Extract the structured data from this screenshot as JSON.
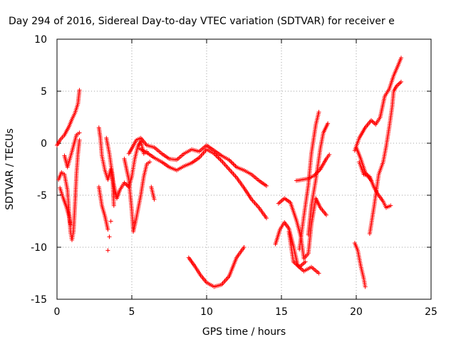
{
  "chart_data": {
    "type": "scatter",
    "title": "Day 294 of 2016, Sidereal Day-to-day VTEC variation (SDTVAR) for receiver e",
    "xlabel": "GPS time / hours",
    "ylabel": "SDTVAR / TECUs",
    "xlim": [
      0,
      25
    ],
    "ylim": [
      -15,
      10
    ],
    "xticks": [
      0,
      5,
      10,
      15,
      20,
      25
    ],
    "yticks": [
      -15,
      -10,
      -5,
      0,
      5,
      10
    ],
    "grid": true,
    "marker": "+",
    "color": "#ff0000",
    "series": [
      {
        "values": [
          [
            0,
            -0.2
          ],
          [
            0.2,
            0.3
          ],
          [
            0.5,
            0.8
          ],
          [
            0.8,
            1.6
          ],
          [
            1.0,
            2.3
          ],
          [
            1.2,
            2.9
          ],
          [
            1.4,
            3.8
          ],
          [
            1.5,
            5.1
          ],
          [
            0.1,
            -3.5
          ],
          [
            0.3,
            -2.8
          ],
          [
            0.5,
            -3.0
          ],
          [
            0.7,
            -4.5
          ],
          [
            0.8,
            -6.5
          ],
          [
            0.9,
            -8.5
          ],
          [
            1.0,
            -9.3
          ],
          [
            1.1,
            -8.5
          ],
          [
            1.2,
            -6.0
          ],
          [
            1.3,
            -3.0
          ],
          [
            1.4,
            -1.0
          ],
          [
            1.5,
            0.3
          ],
          [
            0.2,
            -4.3
          ],
          [
            0.4,
            -5.2
          ],
          [
            0.6,
            -6.0
          ],
          [
            0.8,
            -7.0
          ],
          [
            0.9,
            -7.8
          ],
          [
            0.5,
            -1.2
          ],
          [
            0.7,
            -2.3
          ],
          [
            1.0,
            -0.8
          ],
          [
            1.3,
            0.8
          ],
          [
            1.5,
            1.0
          ],
          [
            2.8,
            1.5
          ],
          [
            2.9,
            0.5
          ],
          [
            3.0,
            -1.2
          ],
          [
            3.2,
            -2.6
          ],
          [
            3.4,
            -3.5
          ],
          [
            3.6,
            -2.5
          ],
          [
            3.8,
            -4.0
          ],
          [
            4.0,
            -5.3
          ],
          [
            4.2,
            -4.5
          ],
          [
            4.5,
            -3.8
          ],
          [
            4.8,
            -4.2
          ],
          [
            5.0,
            -3.2
          ],
          [
            5.2,
            -1.5
          ],
          [
            5.4,
            -0.3
          ],
          [
            5.6,
            0.2
          ],
          [
            5.8,
            -1.0
          ],
          [
            6.0,
            -0.8
          ],
          [
            6.3,
            -4.2
          ],
          [
            6.5,
            -5.4
          ],
          [
            3.3,
            0.5
          ],
          [
            3.5,
            -1.0
          ],
          [
            3.7,
            -3.0
          ],
          [
            3.8,
            -6.0
          ],
          [
            3.6,
            -7.5
          ],
          [
            3.5,
            -9.0
          ],
          [
            3.4,
            -10.3
          ],
          [
            2.8,
            -4.2
          ],
          [
            3.0,
            -6.0
          ],
          [
            3.2,
            -7.0
          ],
          [
            3.4,
            -8.3
          ],
          [
            4.5,
            -1.5
          ],
          [
            4.8,
            -3.5
          ],
          [
            5.0,
            -6.5
          ],
          [
            5.1,
            -8.5
          ],
          [
            5.3,
            -7.2
          ],
          [
            5.6,
            -5.0
          ],
          [
            5.8,
            -3.2
          ],
          [
            6.0,
            -2.0
          ],
          [
            6.2,
            -1.8
          ],
          [
            4.8,
            -1.0
          ],
          [
            5.0,
            -0.5
          ],
          [
            5.3,
            0.3
          ],
          [
            5.6,
            0.5
          ],
          [
            6.0,
            -0.2
          ],
          [
            6.5,
            -0.4
          ],
          [
            7.0,
            -1.0
          ],
          [
            7.5,
            -1.5
          ],
          [
            8.0,
            -1.6
          ],
          [
            8.5,
            -1.0
          ],
          [
            9.0,
            -0.6
          ],
          [
            9.5,
            -0.8
          ],
          [
            10.0,
            -0.2
          ],
          [
            10.5,
            -0.7
          ],
          [
            11.0,
            -1.2
          ],
          [
            11.5,
            -1.6
          ],
          [
            12.0,
            -2.3
          ],
          [
            12.5,
            -2.6
          ],
          [
            13.0,
            -3.0
          ],
          [
            13.5,
            -3.6
          ],
          [
            14.0,
            -4.1
          ],
          [
            5.5,
            -0.5
          ],
          [
            6.0,
            -0.9
          ],
          [
            6.5,
            -1.4
          ],
          [
            7.0,
            -1.8
          ],
          [
            7.5,
            -2.3
          ],
          [
            8.0,
            -2.6
          ],
          [
            8.5,
            -2.2
          ],
          [
            9.0,
            -1.9
          ],
          [
            9.5,
            -1.4
          ],
          [
            10.0,
            -0.6
          ],
          [
            10.5,
            -1.0
          ],
          [
            11.0,
            -1.7
          ],
          [
            11.5,
            -2.5
          ],
          [
            12.0,
            -3.3
          ],
          [
            12.5,
            -4.3
          ],
          [
            13.0,
            -5.4
          ],
          [
            13.5,
            -6.2
          ],
          [
            14.0,
            -7.2
          ],
          [
            8.8,
            -11.0
          ],
          [
            9.2,
            -11.8
          ],
          [
            9.6,
            -12.7
          ],
          [
            10.0,
            -13.4
          ],
          [
            10.5,
            -13.8
          ],
          [
            11.0,
            -13.6
          ],
          [
            11.5,
            -12.8
          ],
          [
            12.0,
            -11.0
          ],
          [
            12.5,
            -10.0
          ],
          [
            14.6,
            -9.7
          ],
          [
            14.9,
            -8.3
          ],
          [
            15.2,
            -7.6
          ],
          [
            15.5,
            -8.2
          ],
          [
            15.8,
            -9.9
          ],
          [
            16.1,
            -11.8
          ],
          [
            16.5,
            -12.3
          ],
          [
            17.0,
            -11.9
          ],
          [
            17.5,
            -12.5
          ],
          [
            14.8,
            -5.8
          ],
          [
            15.2,
            -5.3
          ],
          [
            15.6,
            -5.7
          ],
          [
            16.0,
            -7.4
          ],
          [
            16.3,
            -9.0
          ],
          [
            16.5,
            -11.1
          ],
          [
            16.8,
            -10.6
          ],
          [
            17.0,
            -7.8
          ],
          [
            17.3,
            -5.3
          ],
          [
            17.6,
            -6.2
          ],
          [
            18.0,
            -6.9
          ],
          [
            15.5,
            -8.5
          ],
          [
            15.8,
            -11.4
          ],
          [
            16.2,
            -11.9
          ],
          [
            16.6,
            -11.4
          ],
          [
            16.0,
            -3.6
          ],
          [
            16.4,
            -3.5
          ],
          [
            16.8,
            -3.4
          ],
          [
            17.2,
            -3.1
          ],
          [
            17.6,
            -2.5
          ],
          [
            18.0,
            -1.5
          ],
          [
            18.2,
            -1.1
          ],
          [
            16.2,
            -10.2
          ],
          [
            16.5,
            -7.0
          ],
          [
            16.8,
            -4.0
          ],
          [
            17.0,
            -1.0
          ],
          [
            17.3,
            1.8
          ],
          [
            17.5,
            3.0
          ],
          [
            16.8,
            -8.8
          ],
          [
            17.0,
            -6.0
          ],
          [
            17.3,
            -3.5
          ],
          [
            17.6,
            -0.5
          ],
          [
            17.8,
            1.0
          ],
          [
            18.1,
            1.9
          ],
          [
            19.9,
            -9.6
          ],
          [
            20.1,
            -10.3
          ],
          [
            20.3,
            -11.8
          ],
          [
            20.5,
            -13.0
          ],
          [
            20.6,
            -13.8
          ],
          [
            19.9,
            -0.7
          ],
          [
            20.2,
            0.5
          ],
          [
            20.6,
            1.5
          ],
          [
            21.0,
            2.2
          ],
          [
            21.3,
            1.8
          ],
          [
            21.6,
            2.5
          ],
          [
            21.9,
            4.5
          ],
          [
            22.2,
            5.2
          ],
          [
            22.5,
            6.5
          ],
          [
            22.8,
            7.5
          ],
          [
            23.0,
            8.2
          ],
          [
            20.2,
            -1.8
          ],
          [
            20.5,
            -3.0
          ],
          [
            20.9,
            -3.2
          ],
          [
            21.2,
            -4.3
          ],
          [
            21.5,
            -5.0
          ],
          [
            21.8,
            -5.6
          ],
          [
            22.0,
            -6.2
          ],
          [
            22.3,
            -6.0
          ],
          [
            20.9,
            -8.7
          ],
          [
            21.2,
            -6.0
          ],
          [
            21.5,
            -3.0
          ],
          [
            21.8,
            -1.8
          ],
          [
            22.0,
            -0.3
          ],
          [
            22.2,
            1.5
          ],
          [
            22.4,
            3.5
          ],
          [
            22.5,
            5.0
          ],
          [
            22.7,
            5.5
          ],
          [
            23.0,
            5.9
          ],
          [
            20.0,
            -0.4
          ],
          [
            20.3,
            -1.5
          ],
          [
            20.6,
            -2.8
          ],
          [
            21.0,
            -3.6
          ]
        ]
      }
    ]
  }
}
